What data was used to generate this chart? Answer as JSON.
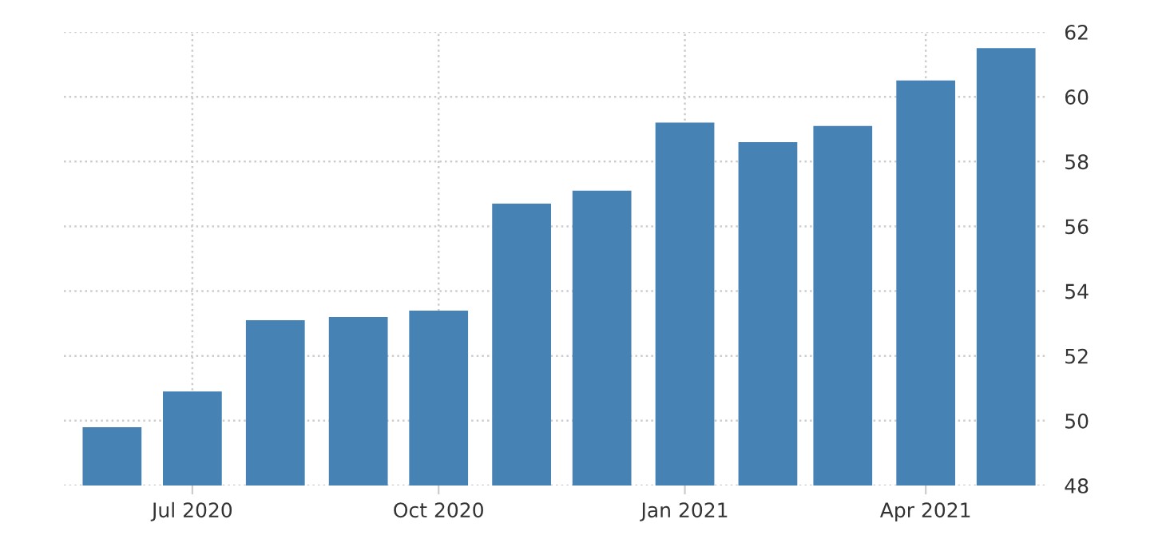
{
  "chart_data": {
    "type": "bar",
    "x": [
      "2020-06-01",
      "2020-07-01",
      "2020-08-01",
      "2020-09-01",
      "2020-10-01",
      "2020-11-01",
      "2020-12-01",
      "2021-01-01",
      "2021-02-01",
      "2021-03-01",
      "2021-04-01",
      "2021-05-01"
    ],
    "values": [
      49.8,
      50.9,
      53.1,
      53.2,
      53.4,
      56.7,
      57.1,
      59.2,
      58.6,
      59.1,
      60.5,
      61.5
    ],
    "color": "#4682b4",
    "xlim": [
      "2020-05-14",
      "2021-05-16"
    ],
    "xticks": [
      {
        "value": "2020-07-01",
        "label": "Jul 2020"
      },
      {
        "value": "2020-10-01",
        "label": "Oct 2020"
      },
      {
        "value": "2021-01-01",
        "label": "Jan 2021"
      },
      {
        "value": "2021-04-01",
        "label": "Apr 2021"
      }
    ],
    "ylim": [
      48,
      62
    ],
    "yticks": [
      48,
      50,
      52,
      54,
      56,
      58,
      60,
      62
    ],
    "grid": true,
    "legend": false
  }
}
